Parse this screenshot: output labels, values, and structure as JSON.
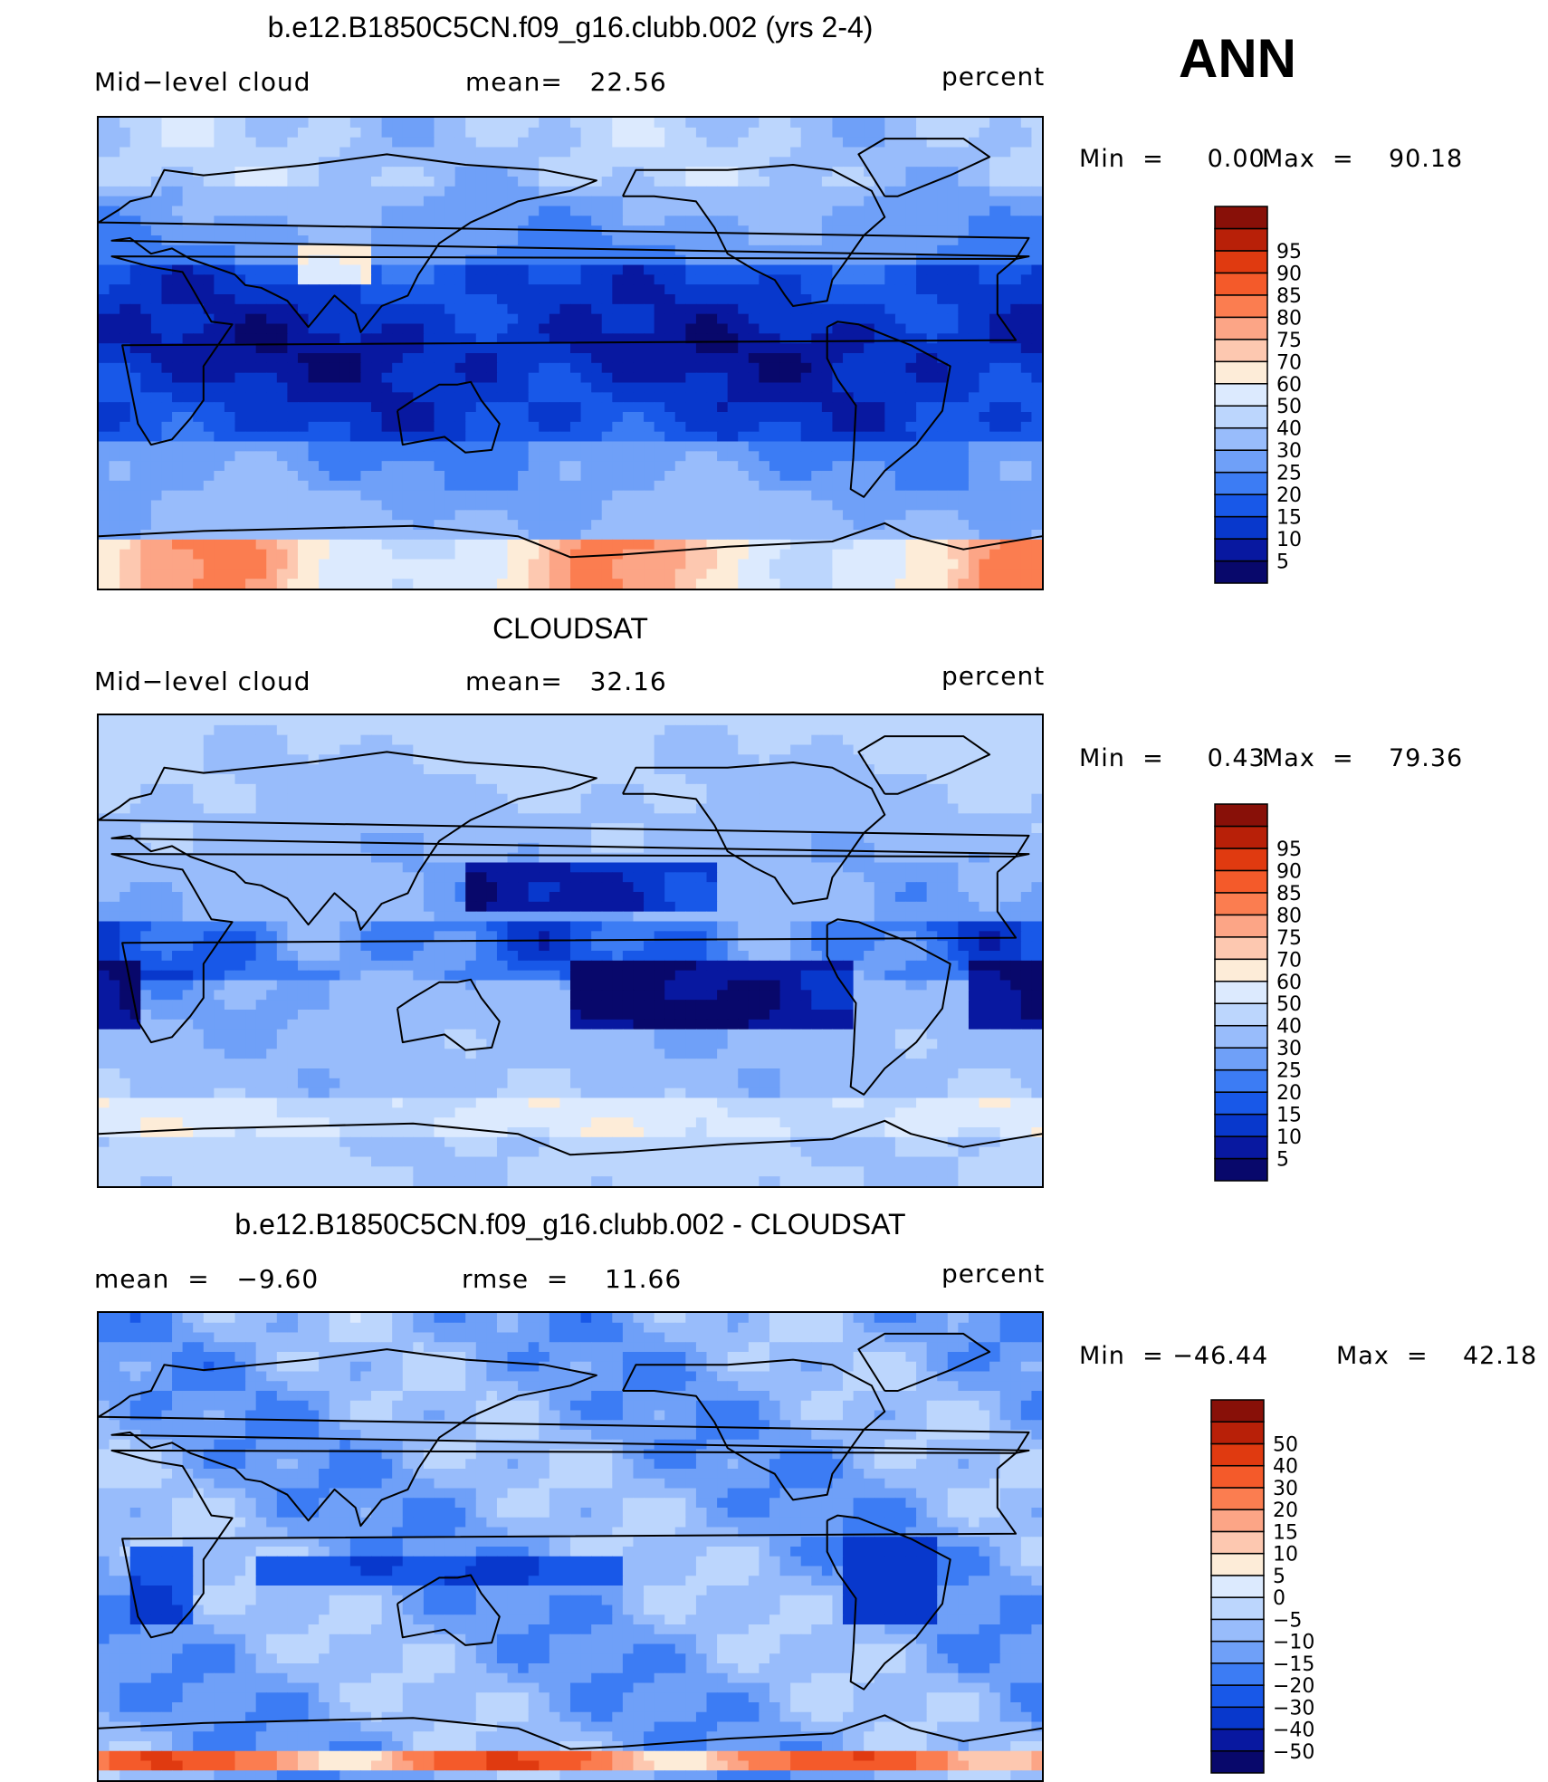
{
  "season": "ANN",
  "panels": [
    {
      "id": "model",
      "title": "b.e12.B1850C5CN.f09_g16.clubb.002 (yrs 2-4)",
      "left_label": "Mid−level cloud",
      "center_label": "mean=   22.56",
      "units": "percent",
      "min_label": "Min  =     0.00",
      "max_label": "Max  =    90.18",
      "field": "model",
      "colorbar": {
        "colors": [
          "#08086b",
          "#0818a0",
          "#0838cc",
          "#1858e8",
          "#3c7cf4",
          "#6fa0f8",
          "#98bcfb",
          "#bcd6fd",
          "#dceafe",
          "#fdecd8",
          "#fdc8b0",
          "#fca586",
          "#fb7d50",
          "#f45a2a",
          "#e03a10",
          "#b82008",
          "#881008"
        ],
        "labels": [
          "5",
          "10",
          "15",
          "20",
          "25",
          "30",
          "40",
          "50",
          "60",
          "70",
          "75",
          "80",
          "85",
          "90",
          "95"
        ]
      }
    },
    {
      "id": "obs",
      "title": "CLOUDSAT",
      "left_label": "Mid−level cloud",
      "center_label": "mean=   32.16",
      "units": "percent",
      "min_label": "Min  =     0.43",
      "max_label": "Max  =    79.36",
      "field": "obs",
      "colorbar": {
        "colors": [
          "#08086b",
          "#0818a0",
          "#0838cc",
          "#1858e8",
          "#3c7cf4",
          "#6fa0f8",
          "#98bcfb",
          "#bcd6fd",
          "#dceafe",
          "#fdecd8",
          "#fdc8b0",
          "#fca586",
          "#fb7d50",
          "#f45a2a",
          "#e03a10",
          "#b82008",
          "#881008"
        ],
        "labels": [
          "5",
          "10",
          "15",
          "20",
          "25",
          "30",
          "40",
          "50",
          "60",
          "70",
          "75",
          "80",
          "85",
          "90",
          "95"
        ]
      }
    },
    {
      "id": "diff",
      "title": "b.e12.B1850C5CN.f09_g16.clubb.002 - CLOUDSAT",
      "left_label": "mean  =   −9.60",
      "center_label": "rmse  =    11.66",
      "units": "percent",
      "min_label": "Min  = −46.44",
      "max_label": "Max  =    42.18",
      "field": "diff",
      "colorbar": {
        "colors": [
          "#08086b",
          "#0818a0",
          "#0838cc",
          "#1858e8",
          "#3c7cf4",
          "#6fa0f8",
          "#98bcfb",
          "#bcd6fd",
          "#dceafe",
          "#fdecd8",
          "#fdc8b0",
          "#fca586",
          "#fb7d50",
          "#f45a2a",
          "#e03a10",
          "#b82008",
          "#881008"
        ],
        "labels": [
          "−50",
          "−40",
          "−30",
          "−20",
          "−15",
          "−10",
          "−5",
          "0",
          "5",
          "10",
          "15",
          "20",
          "30",
          "40",
          "50"
        ]
      }
    }
  ]
}
